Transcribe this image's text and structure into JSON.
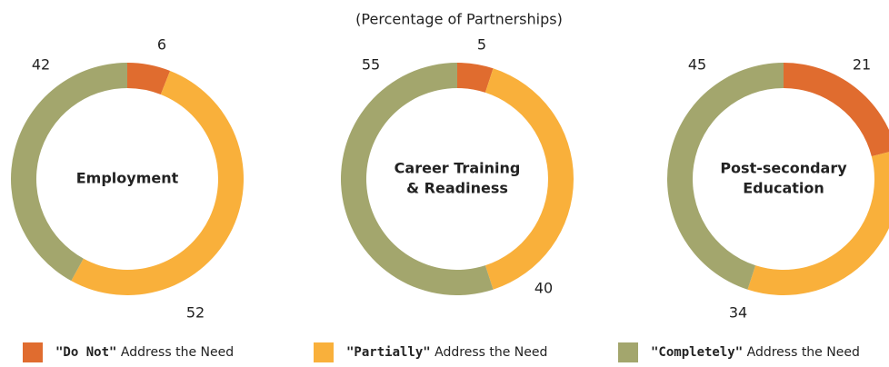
{
  "subtitle": "(Percentage of Partnerships)",
  "chart_data": [
    {
      "type": "donut",
      "title": [
        "Employment"
      ],
      "values": [
        6,
        52,
        42
      ],
      "colors": [
        "#e06c2f",
        "#f9b03b",
        "#a3a66d"
      ]
    },
    {
      "type": "donut",
      "title": [
        "Career Training",
        "& Readiness"
      ],
      "values": [
        5,
        40,
        55
      ],
      "colors": [
        "#e06c2f",
        "#f9b03b",
        "#a3a66d"
      ]
    },
    {
      "type": "donut",
      "title": [
        "Post-secondary",
        "Education"
      ],
      "values": [
        21,
        34,
        45
      ],
      "colors": [
        "#e06c2f",
        "#f9b03b",
        "#a3a66d"
      ]
    }
  ],
  "legend": [
    {
      "emphasis": "\"Do Not\"",
      "label": "Address the Need",
      "color": "#e06c2f"
    },
    {
      "emphasis": "\"Partially\"",
      "label": "Address the Need",
      "color": "#f9b03b"
    },
    {
      "emphasis": "\"Completely\"",
      "label": "Address the Need",
      "color": "#a3a66d"
    }
  ]
}
